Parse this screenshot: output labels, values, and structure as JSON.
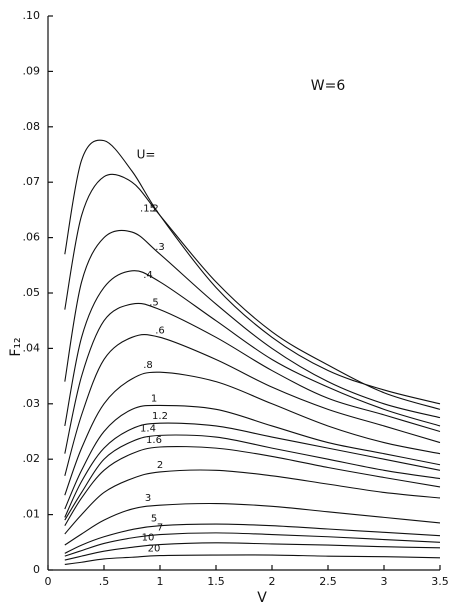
{
  "chart_data": {
    "type": "line",
    "xlabel": "V",
    "ylabel": "F₁₂",
    "annotations": [
      "W=6",
      "U="
    ],
    "x": [
      0.15,
      0.3,
      0.5,
      0.75,
      1,
      1.5,
      2,
      2.5,
      3,
      3.5
    ],
    "xlim": [
      0,
      3.5
    ],
    "xticks": [
      0,
      {
        "value": 0.5,
        "label": ".5"
      },
      1,
      1.5,
      2,
      2.5,
      3,
      3.5
    ],
    "ylim": [
      0,
      0.1
    ],
    "yticks": [
      0,
      {
        "value": 0.01,
        "label": ".01"
      },
      {
        "value": 0.02,
        "label": ".02"
      },
      {
        "value": 0.03,
        "label": ".03"
      },
      {
        "value": 0.04,
        "label": ".04"
      },
      {
        "value": 0.05,
        "label": ".05"
      },
      {
        "value": 0.06,
        "label": ".06"
      },
      {
        "value": 0.07,
        "label": ".07"
      },
      {
        "value": 0.08,
        "label": ".08"
      },
      {
        "value": 0.09,
        "label": ".09"
      },
      {
        "value": 0.1,
        "label": ".10"
      }
    ],
    "color": "#111111",
    "series": [
      {
        "name": ".15",
        "values": [
          0.057,
          0.074,
          0.0775,
          0.072,
          0.064,
          0.051,
          0.042,
          0.036,
          0.0325,
          0.03
        ]
      },
      {
        "name": ".2",
        "values": [
          0.047,
          0.064,
          0.071,
          0.07,
          0.064,
          0.052,
          0.043,
          0.037,
          0.032,
          0.029
        ]
      },
      {
        "name": ".3",
        "values": [
          0.034,
          0.052,
          0.06,
          0.061,
          0.057,
          0.048,
          0.04,
          0.034,
          0.03,
          0.0275
        ]
      },
      {
        "name": ".4",
        "values": [
          0.026,
          0.042,
          0.051,
          0.054,
          0.052,
          0.045,
          0.038,
          0.033,
          0.029,
          0.026
        ]
      },
      {
        "name": ".5",
        "values": [
          0.021,
          0.035,
          0.045,
          0.048,
          0.047,
          0.042,
          0.036,
          0.031,
          0.028,
          0.025
        ]
      },
      {
        "name": ".6",
        "values": [
          0.017,
          0.028,
          0.038,
          0.042,
          0.042,
          0.038,
          0.033,
          0.029,
          0.026,
          0.023
        ]
      },
      {
        "name": ".8",
        "values": [
          0.0135,
          0.022,
          0.03,
          0.0345,
          0.0357,
          0.034,
          0.03,
          0.026,
          0.023,
          0.021
        ]
      },
      {
        "name": "1",
        "values": [
          0.011,
          0.018,
          0.025,
          0.029,
          0.0297,
          0.029,
          0.026,
          0.023,
          0.021,
          0.019
        ]
      },
      {
        "name": "1.2",
        "values": [
          0.0095,
          0.016,
          0.022,
          0.0255,
          0.0265,
          0.026,
          0.024,
          0.022,
          0.02,
          0.018
        ]
      },
      {
        "name": "1.4",
        "values": [
          0.009,
          0.014,
          0.02,
          0.0232,
          0.0243,
          0.024,
          0.022,
          0.02,
          0.018,
          0.0165
        ]
      },
      {
        "name": "1.6",
        "values": [
          0.008,
          0.013,
          0.018,
          0.021,
          0.0222,
          0.022,
          0.0205,
          0.0185,
          0.0167,
          0.015
        ]
      },
      {
        "name": "2",
        "values": [
          0.0065,
          0.01,
          0.014,
          0.0165,
          0.0177,
          0.018,
          0.017,
          0.0155,
          0.014,
          0.013
        ]
      },
      {
        "name": "3",
        "values": [
          0.0045,
          0.0065,
          0.009,
          0.011,
          0.0117,
          0.012,
          0.0115,
          0.0105,
          0.0095,
          0.0085
        ]
      },
      {
        "name": "5",
        "values": [
          0.003,
          0.0045,
          0.006,
          0.0073,
          0.008,
          0.0083,
          0.008,
          0.0074,
          0.0068,
          0.0062
        ]
      },
      {
        "name": "7",
        "values": [
          0.0025,
          0.0035,
          0.0048,
          0.0058,
          0.0064,
          0.0067,
          0.0064,
          0.006,
          0.0055,
          0.005
        ]
      },
      {
        "name": "10",
        "values": [
          0.0018,
          0.0025,
          0.0034,
          0.0041,
          0.0046,
          0.0049,
          0.0047,
          0.0045,
          0.0042,
          0.004
        ]
      },
      {
        "name": "20",
        "values": [
          0.001,
          0.0014,
          0.002,
          0.0023,
          0.0026,
          0.0027,
          0.0027,
          0.0025,
          0.0024,
          0.0022
        ]
      }
    ]
  }
}
